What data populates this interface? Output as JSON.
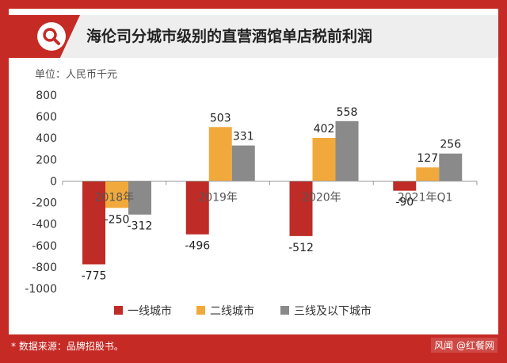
{
  "title": "海伦司分城市级别的直营酒馆单店税前利润",
  "unit": "单位：人民币千元",
  "source": "* 数据来源：品牌招股书。",
  "watermark": "风闻 @红餐网",
  "colors": {
    "tier1": "#bf2b26",
    "tier2": "#f2a93b",
    "tier3": "#8a8a8a",
    "accent": "#c62a25"
  },
  "icons": {
    "title": "search-icon"
  },
  "chart_data": {
    "type": "bar",
    "title": "海伦司分城市级别的直营酒馆单店税前利润",
    "ylabel": "单位：人民币千元",
    "xlabel": "",
    "categories": [
      "2018年",
      "2019年",
      "2020年",
      "2021年Q1"
    ],
    "series": [
      {
        "name": "一线城市",
        "values": [
          -775,
          -496,
          -512,
          -90
        ]
      },
      {
        "name": "二线城市",
        "values": [
          -250,
          503,
          402,
          127
        ]
      },
      {
        "name": "三线及以下城市",
        "values": [
          -312,
          331,
          558,
          256
        ]
      }
    ],
    "ylim": [
      -1000,
      800
    ],
    "yticks": [
      800,
      600,
      400,
      200,
      0,
      -200,
      -400,
      -600,
      -800,
      -1000
    ],
    "grid": false,
    "legend": "bottom"
  }
}
